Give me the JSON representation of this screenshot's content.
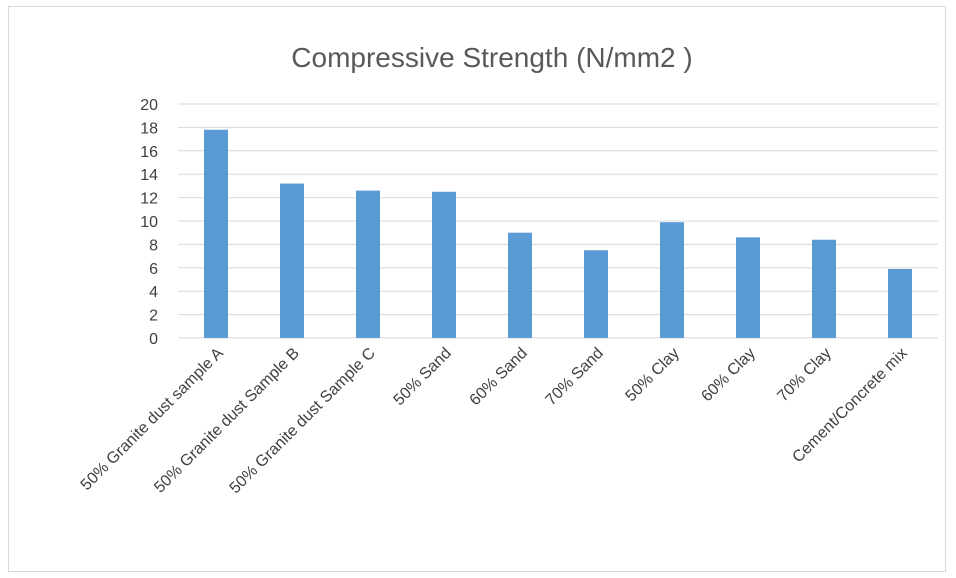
{
  "chart_data": {
    "type": "bar",
    "title": "Compressive Strength (N/mm2 )",
    "xlabel": "",
    "ylabel": "",
    "ylim": [
      0,
      20
    ],
    "yticks": [
      0,
      2,
      4,
      6,
      8,
      10,
      12,
      14,
      16,
      18,
      20
    ],
    "grid": true,
    "legend": "none",
    "bar_color": "#5b9bd5",
    "categories": [
      "50% Granite dust sample A",
      "50% Granite dust Sample B",
      "50% Granite dust Sample C",
      "50% Sand",
      "60% Sand",
      "70% Sand",
      "50% Clay",
      "60% Clay",
      "70% Clay",
      "Cement/Concrete mix"
    ],
    "values": [
      17.8,
      13.2,
      12.6,
      12.5,
      9.0,
      7.5,
      9.9,
      8.6,
      8.4,
      5.9
    ]
  }
}
